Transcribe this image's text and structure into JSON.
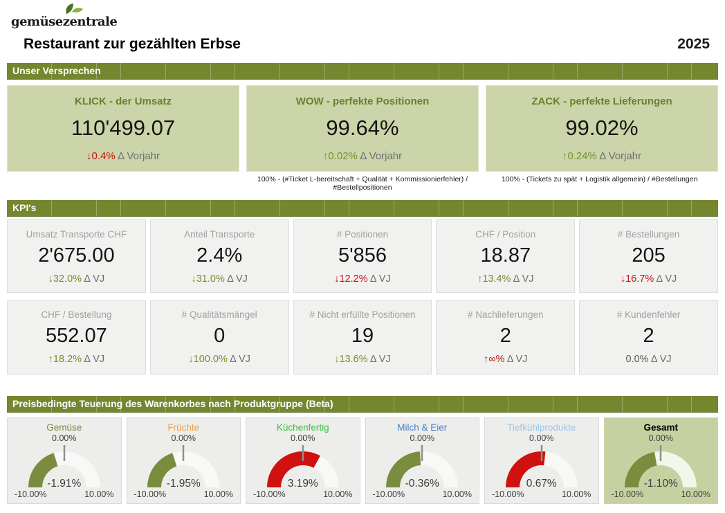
{
  "logo": {
    "text": "gemüsezentrale"
  },
  "header": {
    "title": "Restaurant zur gezählten Erbse",
    "year": "2025"
  },
  "colors": {
    "banner_green": "#75872e",
    "promise_card_bg": "#cbd5a9",
    "promise_title": "#6e7e2c",
    "delta_red": "#c41212",
    "delta_green": "#72922d",
    "gauge_arc_green": "#7a8c3e",
    "gauge_arc_red": "#cf1110",
    "gauge_track": "#f8f8f6",
    "gauge_track_highlight": "#f3f6ea"
  },
  "sections": {
    "promises": {
      "banner": "Unser Versprechen",
      "cards": [
        {
          "title": "KLICK - der Umsatz",
          "value": "110'499.07",
          "delta_arrow": "↓",
          "delta_pct": "0.4%",
          "delta_label": "Δ Vorjahr",
          "delta_color": "red"
        },
        {
          "title": "WOW - perfekte Positionen",
          "value": "99.64%",
          "delta_arrow": "↑",
          "delta_pct": "0.02%",
          "delta_label": "Δ Vorjahr",
          "delta_color": "green"
        },
        {
          "title": "ZACK - perfekte Lieferungen",
          "value": "99.02%",
          "delta_arrow": "↑",
          "delta_pct": "0.24%",
          "delta_label": "Δ Vorjahr",
          "delta_color": "green"
        }
      ],
      "footnotes": [
        "100% - (#Ticket L-bereitschaft + Qualität + Kommissionierfehler) / #Bestellpositionen",
        "100% - (Tickets zu spät + Logistik allgemein) / #Bestellungen"
      ]
    },
    "kpis": {
      "banner": "KPI's",
      "rows": [
        [
          {
            "title": "Umsatz Transporte CHF",
            "value": "2'675.00",
            "delta_arrow": "↓",
            "delta_pct": "32.0%",
            "delta_label": "Δ VJ",
            "delta_color": "green"
          },
          {
            "title": "Anteil Transporte",
            "value": "2.4%",
            "delta_arrow": "↓",
            "delta_pct": "31.0%",
            "delta_label": "Δ VJ",
            "delta_color": "green"
          },
          {
            "title": "# Positionen",
            "value": "5'856",
            "delta_arrow": "↓",
            "delta_pct": "12.2%",
            "delta_label": "Δ VJ",
            "delta_color": "red"
          },
          {
            "title": "CHF / Position",
            "value": "18.87",
            "delta_arrow": "↑",
            "delta_pct": "13.4%",
            "delta_label": "Δ VJ",
            "delta_color": "green"
          },
          {
            "title": "# Bestellungen",
            "value": "205",
            "delta_arrow": "↓",
            "delta_pct": "16.7%",
            "delta_label": "Δ VJ",
            "delta_color": "red"
          }
        ],
        [
          {
            "title": "CHF / Bestellung",
            "value": "552.07",
            "delta_arrow": "↑",
            "delta_pct": "18.2%",
            "delta_label": "Δ VJ",
            "delta_color": "green"
          },
          {
            "title": "# Qualitätsmängel",
            "value": "0",
            "delta_arrow": "↓",
            "delta_pct": "100.0%",
            "delta_label": "Δ VJ",
            "delta_color": "green"
          },
          {
            "title": "# Nicht erfüllte Positionen",
            "value": "19",
            "delta_arrow": "↓",
            "delta_pct": "13.6%",
            "delta_label": "Δ VJ",
            "delta_color": "green"
          },
          {
            "title": "# Nachlieferungen",
            "value": "2",
            "delta_arrow": "↑",
            "delta_pct": "∞%",
            "delta_label": "Δ VJ",
            "delta_color": "red"
          },
          {
            "title": "# Kundenfehler",
            "value": "2",
            "delta_arrow": "",
            "delta_pct": "0.0%",
            "delta_label": "Δ VJ",
            "delta_color": "gray"
          }
        ]
      ]
    },
    "gauges": {
      "banner": "Preisbedingte Teuerung des Warenkorbes nach Produktgruppe (Beta)",
      "min": -10,
      "max": 10,
      "min_label": "-10.00%",
      "max_label": "10.00%",
      "zero_label": "0.00%",
      "items": [
        {
          "title": "Gemüse",
          "title_color": "#7c8c42",
          "bold": false,
          "value": -1.91,
          "value_label": "-1.91%",
          "arc_color": "#7a8c3e",
          "highlight": false
        },
        {
          "title": "Früchte",
          "title_color": "#f0a144",
          "bold": false,
          "value": -1.95,
          "value_label": "-1.95%",
          "arc_color": "#7a8c3e",
          "highlight": false
        },
        {
          "title": "Küchenfertig",
          "title_color": "#3dc03d",
          "bold": false,
          "value": 3.19,
          "value_label": "3.19%",
          "arc_color": "#cf1110",
          "highlight": false
        },
        {
          "title": "Milch & Eier",
          "title_color": "#4b80c0",
          "bold": false,
          "value": -0.36,
          "value_label": "-0.36%",
          "arc_color": "#7a8c3e",
          "highlight": false
        },
        {
          "title": "Tiefkühlprodukte",
          "title_color": "#9dc4e6",
          "bold": false,
          "value": 0.67,
          "value_label": "0.67%",
          "arc_color": "#cf1110",
          "highlight": false
        },
        {
          "title": "Gesamt",
          "title_color": "#000000",
          "bold": true,
          "value": -1.1,
          "value_label": "-1.10%",
          "arc_color": "#7a8c3e",
          "highlight": true
        }
      ]
    }
  }
}
